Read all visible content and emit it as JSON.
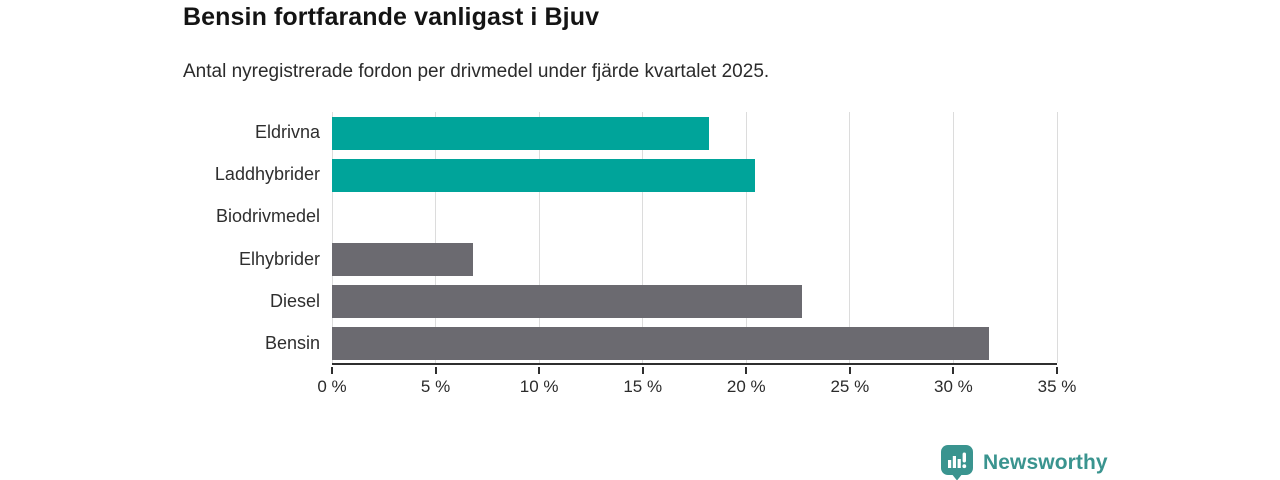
{
  "header": {
    "title": "Bensin fortfarande vanligast i Bjuv",
    "subtitle": "Antal nyregistrerade fordon per drivmedel under fjärde kvartalet 2025."
  },
  "chart_data": {
    "type": "bar",
    "orientation": "horizontal",
    "title": "Bensin fortfarande vanligast i Bjuv",
    "subtitle": "Antal nyregistrerade fordon per drivmedel under fjärde kvartalet 2025.",
    "categories": [
      "Eldrivna",
      "Laddhybrider",
      "Biodrivmedel",
      "Elhybrider",
      "Diesel",
      "Bensin"
    ],
    "values": [
      18.2,
      20.4,
      0,
      6.8,
      22.7,
      31.7
    ],
    "unit": "%",
    "bar_colors": [
      "#00a49a",
      "#00a49a",
      "#6b6a70",
      "#6b6a70",
      "#6b6a70",
      "#6b6a70"
    ],
    "xlabel": "",
    "ylabel": "",
    "xlim": [
      0,
      35
    ],
    "xticks": [
      0,
      5,
      10,
      15,
      20,
      25,
      30,
      35
    ],
    "xtick_labels": [
      "0 %",
      "5 %",
      "10 %",
      "15 %",
      "20 %",
      "25 %",
      "30 %",
      "35 %"
    ],
    "grid": true,
    "legend": false
  },
  "colors": {
    "highlight_teal": "#00a49a",
    "neutral_gray": "#6b6a70",
    "axis": "#2f2f2f",
    "gridline": "#dcdcdc",
    "brand_teal": "#3a948f"
  },
  "footer": {
    "brand": "Newsworthy"
  }
}
